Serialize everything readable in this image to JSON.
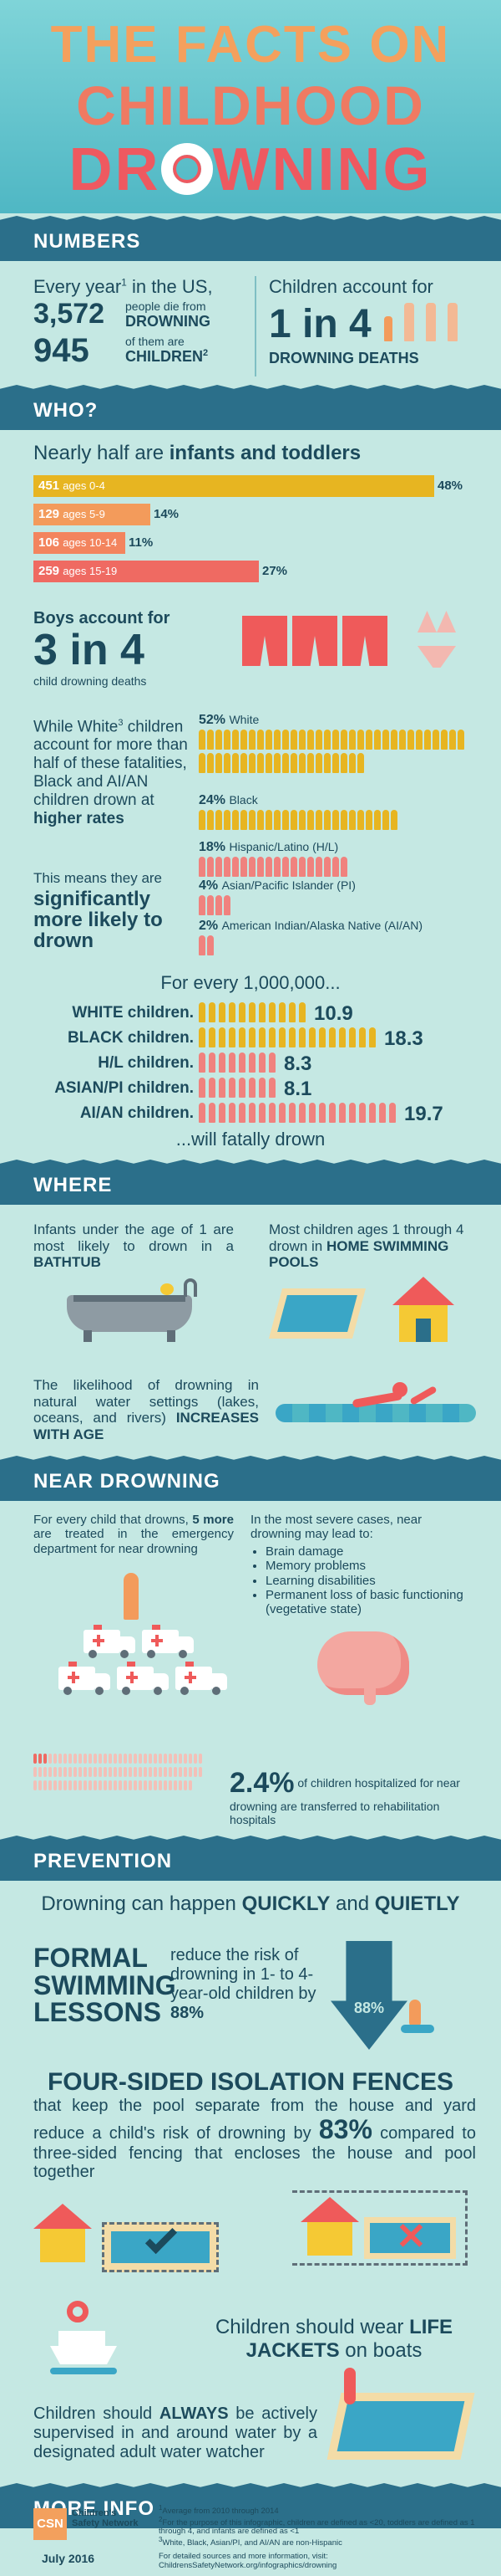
{
  "header": {
    "line1": "THE FACTS ON",
    "line2": "CHILDHOOD",
    "line3_a": "DR",
    "line3_b": "WNING"
  },
  "numbers": {
    "section_title": "NUMBERS",
    "every_year": "Every year",
    "sup1": "1",
    "in_us": " in the US,",
    "n_3572": "3,572",
    "people_die_from": "people die from",
    "drowning": "DROWNING",
    "n_945": "945",
    "of_them_are": "of them are",
    "children": "CHILDREN",
    "sup2": "2",
    "children_account": "Children account for",
    "one_in_4": "1 in 4",
    "drowning_deaths": "DROWNING DEATHS"
  },
  "who": {
    "section_title": "WHO?",
    "nearly_half_a": "Nearly half are ",
    "nearly_half_b": "infants and toddlers",
    "age_bars": [
      {
        "count": "451",
        "label": "ages 0-4",
        "pct": "48%",
        "value": 48,
        "color": "#e7b521"
      },
      {
        "count": "129",
        "label": "ages 5-9",
        "pct": "14%",
        "value": 14,
        "color": "#f39b5b"
      },
      {
        "count": "106",
        "label": "ages 10-14",
        "pct": "11%",
        "value": 11,
        "color": "#f3845e"
      },
      {
        "count": "259",
        "label": "ages 15-19",
        "pct": "27%",
        "value": 27,
        "color": "#ef6a62"
      }
    ],
    "boys_account_for": "Boys account for",
    "three_in_4": "3 in 4",
    "child_drowning_deaths": "child drowning deaths",
    "while_white_a": "While White",
    "sup3": "3",
    "while_white_b": "children account for more than half of these fatalities, Black and AI/AN children drown at ",
    "higher_rates": "higher rates",
    "this_means": "This means they are",
    "significantly": "significantly more likely to drown",
    "race_rows": [
      {
        "pct": "52%",
        "label": "White",
        "value": 52,
        "color": "#e7b521"
      },
      {
        "pct": "24%",
        "label": "Black",
        "value": 24,
        "color": "#e7b521"
      },
      {
        "pct": "18%",
        "label": "Hispanic/Latino (H/L)",
        "value": 18,
        "color": "#f0827e"
      },
      {
        "pct": "4%",
        "label": "Asian/Pacific Islander (PI)",
        "value": 4,
        "color": "#f0827e"
      },
      {
        "pct": "2%",
        "label": "American Indian/Alaska Native (AI/AN)",
        "value": 2,
        "color": "#f0827e"
      }
    ],
    "for_every": "For every 1,000,000...",
    "rate_rows": [
      {
        "label": "WHITE children",
        "value": "10.9",
        "num": 10.9,
        "color": "#e7b521"
      },
      {
        "label": "BLACK children",
        "value": "18.3",
        "num": 18.3,
        "color": "#e7b521"
      },
      {
        "label": "H/L children",
        "value": "8.3",
        "num": 8.3,
        "color": "#f0827e"
      },
      {
        "label": "ASIAN/PI children",
        "value": "8.1",
        "num": 8.1,
        "color": "#f0827e"
      },
      {
        "label": "AI/AN children",
        "value": "19.7",
        "num": 19.7,
        "color": "#f0827e"
      }
    ],
    "will_fatally": "...will fatally drown"
  },
  "where": {
    "section_title": "WHERE",
    "infants_a": "Infants under the age of 1 are most likely to drown in a ",
    "bathtub": "BATHTUB",
    "most_children_a": "Most children ages 1 through 4 drown in ",
    "home_pools": "HOME SWIMMING POOLS",
    "likelihood_a": "The likelihood of drowning in natural water settings (lakes, oceans, and rivers) ",
    "increases": "INCREASES WITH AGE"
  },
  "near": {
    "section_title": "NEAR DROWNING",
    "for_every_a": "For every child that drowns, ",
    "five_more": "5 more",
    "for_every_b": " are treated in the emergency department for near drowning",
    "severe": "In the most severe cases, near drowning may lead to:",
    "bullets": [
      "Brain damage",
      "Memory problems",
      "Learning disabilities",
      "Permanent loss of basic functioning (vegetative state)"
    ],
    "pct": "2.4%",
    "hosp_a": " of children hospitalized for near drowning are transferred to rehabilitation hospitals"
  },
  "prevention": {
    "section_title": "PREVENTION",
    "happen_a": "Drowning can happen ",
    "quickly": "QUICKLY",
    "and": " and ",
    "quietly": "QUIETLY",
    "formal": "FORMAL SWIMMING LESSONS",
    "reduce": "reduce the risk of drowning in 1- to 4- year-old children by ",
    "pct88": "88%",
    "arrow88": "88%",
    "fences": "FOUR-SIDED ISOLATION FENCES",
    "fences_a": "that keep the pool separate from the house and yard reduce a child's risk of drowning by ",
    "pct83": "83%",
    "fences_b": " compared to three-sided fencing that encloses the house and pool together",
    "life_a": "Children should wear ",
    "life_jackets": "LIFE JACKETS",
    "life_b": " on boats",
    "always_a": "Children should ",
    "always": "ALWAYS",
    "always_b": " be actively supervised in and around water by a designated adult water watcher"
  },
  "more": {
    "section_title": "MORE INFO",
    "logo_abbr": "CSN",
    "logo_name": "Children's Safety Network",
    "date": "July 2016",
    "notes": [
      {
        "n": "1",
        "text": "Average from 2010 through 2014"
      },
      {
        "n": "2",
        "text": "For the purpose of this infographic, children are defined as <20, toddlers are defined as 1 through 4, and infants are defined as <1"
      },
      {
        "n": "3",
        "text": "White, Black, Asian/PI, and AI/AN are non-Hispanic"
      }
    ],
    "details": "For detailed sources and more information, visit: ChildrensSafetyNetwork.org/infographics/drowning"
  }
}
